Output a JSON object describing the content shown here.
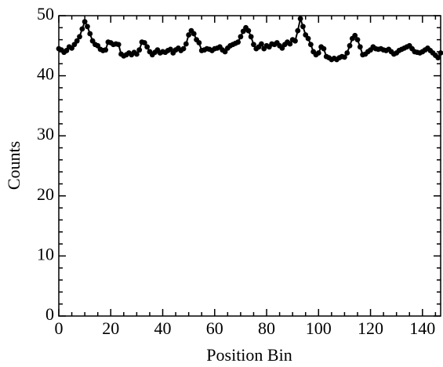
{
  "chart_data": {
    "type": "line",
    "xlabel": "Position Bin",
    "ylabel": "Counts",
    "x": [
      0,
      1,
      2,
      3,
      4,
      5,
      6,
      7,
      8,
      9,
      10,
      11,
      12,
      13,
      14,
      15,
      16,
      17,
      18,
      19,
      20,
      21,
      22,
      23,
      24,
      25,
      26,
      27,
      28,
      29,
      30,
      31,
      32,
      33,
      34,
      35,
      36,
      37,
      38,
      39,
      40,
      41,
      42,
      43,
      44,
      45,
      46,
      47,
      48,
      49,
      50,
      51,
      52,
      53,
      54,
      55,
      56,
      57,
      58,
      59,
      60,
      61,
      62,
      63,
      64,
      65,
      66,
      67,
      68,
      69,
      70,
      71,
      72,
      73,
      74,
      75,
      76,
      77,
      78,
      79,
      80,
      81,
      82,
      83,
      84,
      85,
      86,
      87,
      88,
      89,
      90,
      91,
      92,
      93,
      94,
      95,
      96,
      97,
      98,
      99,
      100,
      101,
      102,
      103,
      104,
      105,
      106,
      107,
      108,
      109,
      110,
      111,
      112,
      113,
      114,
      115,
      116,
      117,
      118,
      119,
      120,
      121,
      122,
      123,
      124,
      125,
      126,
      127,
      128,
      129,
      130,
      131,
      132,
      133,
      134,
      135,
      136,
      137,
      138,
      139,
      140,
      141,
      142,
      143,
      144,
      145,
      146,
      147
    ],
    "series": [
      {
        "name": "Counts",
        "color": "#000000",
        "values": [
          44.5,
          44.3,
          43.9,
          44.2,
          44.8,
          44.6,
          45.2,
          45.8,
          46.5,
          47.8,
          49.0,
          48.2,
          47.0,
          45.8,
          45.2,
          45.0,
          44.4,
          44.2,
          44.3,
          45.6,
          45.5,
          45.2,
          45.3,
          45.2,
          43.6,
          43.3,
          43.5,
          43.8,
          43.5,
          43.9,
          43.6,
          44.3,
          45.6,
          45.5,
          44.8,
          44.0,
          43.5,
          43.9,
          44.3,
          43.8,
          44.0,
          43.9,
          44.2,
          44.4,
          43.8,
          44.3,
          44.6,
          44.2,
          44.5,
          45.3,
          46.8,
          47.5,
          47.0,
          46.0,
          45.5,
          44.2,
          44.3,
          44.5,
          44.4,
          44.2,
          44.5,
          44.6,
          44.8,
          44.3,
          44.0,
          44.6,
          45.0,
          45.2,
          45.4,
          45.6,
          46.5,
          47.4,
          48.0,
          47.5,
          46.5,
          45.2,
          44.5,
          44.8,
          45.3,
          44.5,
          45.0,
          44.8,
          45.3,
          45.2,
          45.5,
          45.0,
          44.6,
          45.2,
          45.6,
          45.3,
          46.0,
          45.8,
          47.5,
          49.5,
          48.2,
          46.8,
          46.2,
          45.2,
          44.0,
          43.5,
          43.8,
          44.8,
          44.5,
          43.2,
          43.0,
          42.7,
          42.9,
          42.7,
          43.0,
          43.2,
          43.1,
          43.8,
          45.0,
          46.2,
          46.7,
          46.0,
          44.8,
          43.5,
          43.6,
          44.0,
          44.3,
          44.8,
          44.5,
          44.4,
          44.5,
          44.3,
          44.2,
          44.4,
          44.0,
          43.6,
          43.8,
          44.2,
          44.4,
          44.6,
          44.8,
          45.0,
          44.5,
          44.0,
          43.9,
          43.8,
          44.0,
          44.3,
          44.6,
          44.2,
          43.8,
          43.4,
          43.0,
          43.8
        ]
      }
    ],
    "xlim": [
      0,
      147
    ],
    "ylim": [
      0,
      50
    ],
    "xticks": [
      0,
      20,
      40,
      60,
      80,
      100,
      120,
      140
    ],
    "yticks": [
      0,
      10,
      20,
      30,
      40,
      50
    ],
    "xminorticks": [
      5,
      10,
      15,
      25,
      30,
      35,
      45,
      50,
      55,
      65,
      70,
      75,
      85,
      90,
      95,
      105,
      110,
      115,
      125,
      130,
      135,
      145
    ],
    "yminorticks": [
      2,
      4,
      6,
      8,
      12,
      14,
      16,
      18,
      22,
      24,
      26,
      28,
      32,
      34,
      36,
      38,
      42,
      44,
      46,
      48
    ],
    "grid": false
  }
}
